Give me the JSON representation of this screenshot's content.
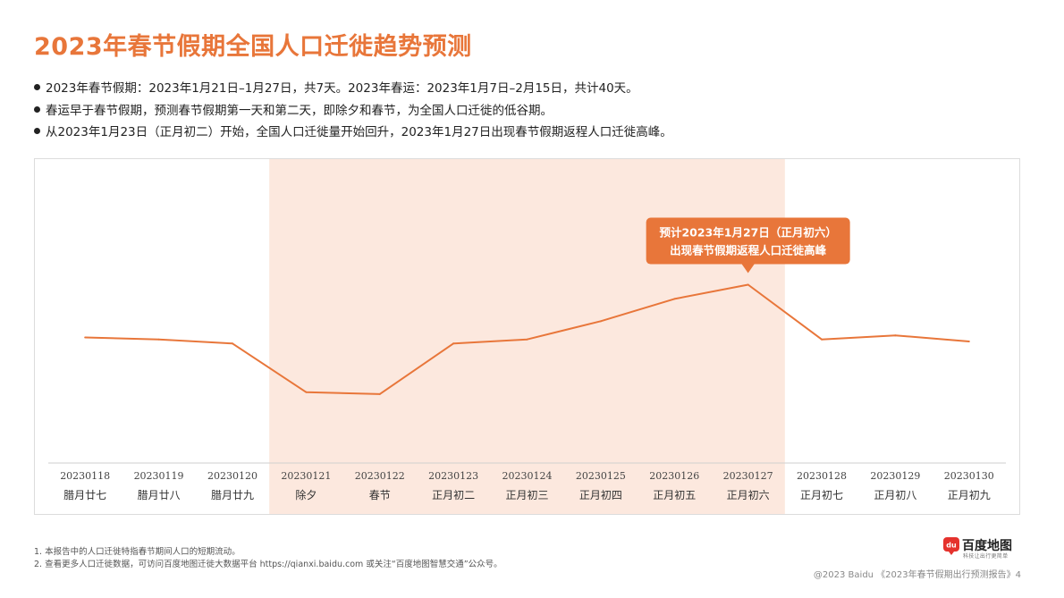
{
  "title": "2023年春节假期全国人口迁徙趋势预测",
  "bullets": [
    "2023年春节假期：2023年1月21日–1月27日，共7天。2023年春运：2023年1月7日–2月15日，共计40天。",
    "春运早于春节假期，预测春节假期第一天和第二天，即除夕和春节，为全国人口迁徙的低谷期。",
    "从2023年1月23日（正月初二）开始，全国人口迁徙量开始回升，2023年1月27日出现春节假期返程人口迁徙高峰。"
  ],
  "chart_data": {
    "type": "line",
    "categories": [
      "20230118",
      "20230119",
      "20230120",
      "20230121",
      "20230122",
      "20230123",
      "20230124",
      "20230125",
      "20230126",
      "20230127",
      "20230128",
      "20230129",
      "20230130"
    ],
    "lunar_labels": [
      "腊月廿七",
      "腊月廿八",
      "腊月廿九",
      "除夕",
      "春节",
      "正月初二",
      "正月初三",
      "正月初四",
      "正月初五",
      "正月初六",
      "正月初七",
      "正月初八",
      "正月初九"
    ],
    "values": [
      62,
      61,
      59,
      35,
      34,
      59,
      61,
      70,
      81,
      88,
      61,
      63,
      60
    ],
    "ylim": [
      0,
      150
    ],
    "grid": false,
    "line_color": "#E8763A",
    "highlight_color": "#FCE8DE",
    "highlight_range": [
      "20230121",
      "20230127"
    ],
    "annotation": {
      "category": "20230127",
      "lines": [
        "预计2023年1月27日（正月初六）",
        "出现春节假期返程人口迁徙高峰"
      ]
    }
  },
  "footnotes": [
    "1.  本报告中的人口迁徙特指春节期间人口的短期流动。",
    "2.  查看更多人口迁徙数据，可访问百度地图迁徙大数据平台 https://qianxi.baidu.com 或关注“百度地图智慧交通”公众号。"
  ],
  "logo": {
    "name": "百度地图",
    "tagline": "科技让出行更简单",
    "icon": "baidu-map-logo-icon",
    "icon_text": "du"
  },
  "footer": "@2023 Baidu 《2023年春节假期出行预测报告》4"
}
